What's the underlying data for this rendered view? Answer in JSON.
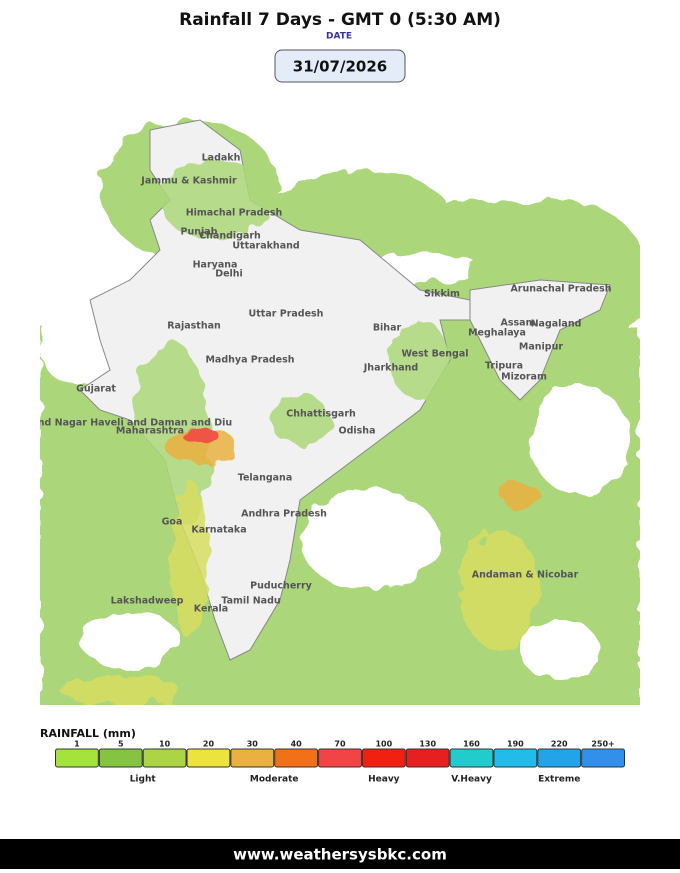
{
  "header": {
    "title": "Rainfall 7 Days - GMT 0 (5:30 AM)",
    "date_label": "DATE",
    "date": "31/07/2026"
  },
  "map": {
    "labels": [
      "Ladakh",
      "Jammu & Kashmir",
      "Himachal Pradesh",
      "Punjab",
      "Chandigarh",
      "Uttarakhand",
      "Haryana",
      "Delhi",
      "Rajasthan",
      "Uttar Pradesh",
      "Bihar",
      "Sikkim",
      "Arunachal Pradesh",
      "Assam",
      "Nagaland",
      "Meghalaya",
      "Manipur",
      "West Bengal",
      "Tripura",
      "Mizoram",
      "Jharkhand",
      "Madhya Pradesh",
      "Gujarat",
      "Chhattisgarh",
      "Odisha",
      "Dadra and Nagar Haveli and Daman and Diu",
      "Maharashtra",
      "Telangana",
      "Andhra Pradesh",
      "Goa",
      "Karnataka",
      "Puducherry",
      "Andaman & Nicobar",
      "Tamil Nadu",
      "Kerala",
      "Lakshadweep"
    ]
  },
  "legend": {
    "title": "RAINFALL (mm)",
    "items": [
      {
        "label": "1",
        "color": "#a4e23c"
      },
      {
        "label": "5",
        "color": "#84c440"
      },
      {
        "label": "10",
        "color": "#acd444"
      },
      {
        "label": "20",
        "color": "#ece43c"
      },
      {
        "label": "30",
        "color": "#eab040"
      },
      {
        "label": "40",
        "color": "#f27018"
      },
      {
        "label": "70",
        "color": "#f24444"
      },
      {
        "label": "100",
        "color": "#f22010"
      },
      {
        "label": "130",
        "color": "#e62020"
      },
      {
        "label": "160",
        "color": "#22cccc"
      },
      {
        "label": "190",
        "color": "#22bcea"
      },
      {
        "label": "220",
        "color": "#22a4ea"
      },
      {
        "label": "250+",
        "color": "#3290ea"
      }
    ],
    "categories": [
      "Light",
      "Moderate",
      "Heavy",
      "V.Heavy",
      "Extreme"
    ]
  },
  "footer": "www.weathersysbkc.com"
}
